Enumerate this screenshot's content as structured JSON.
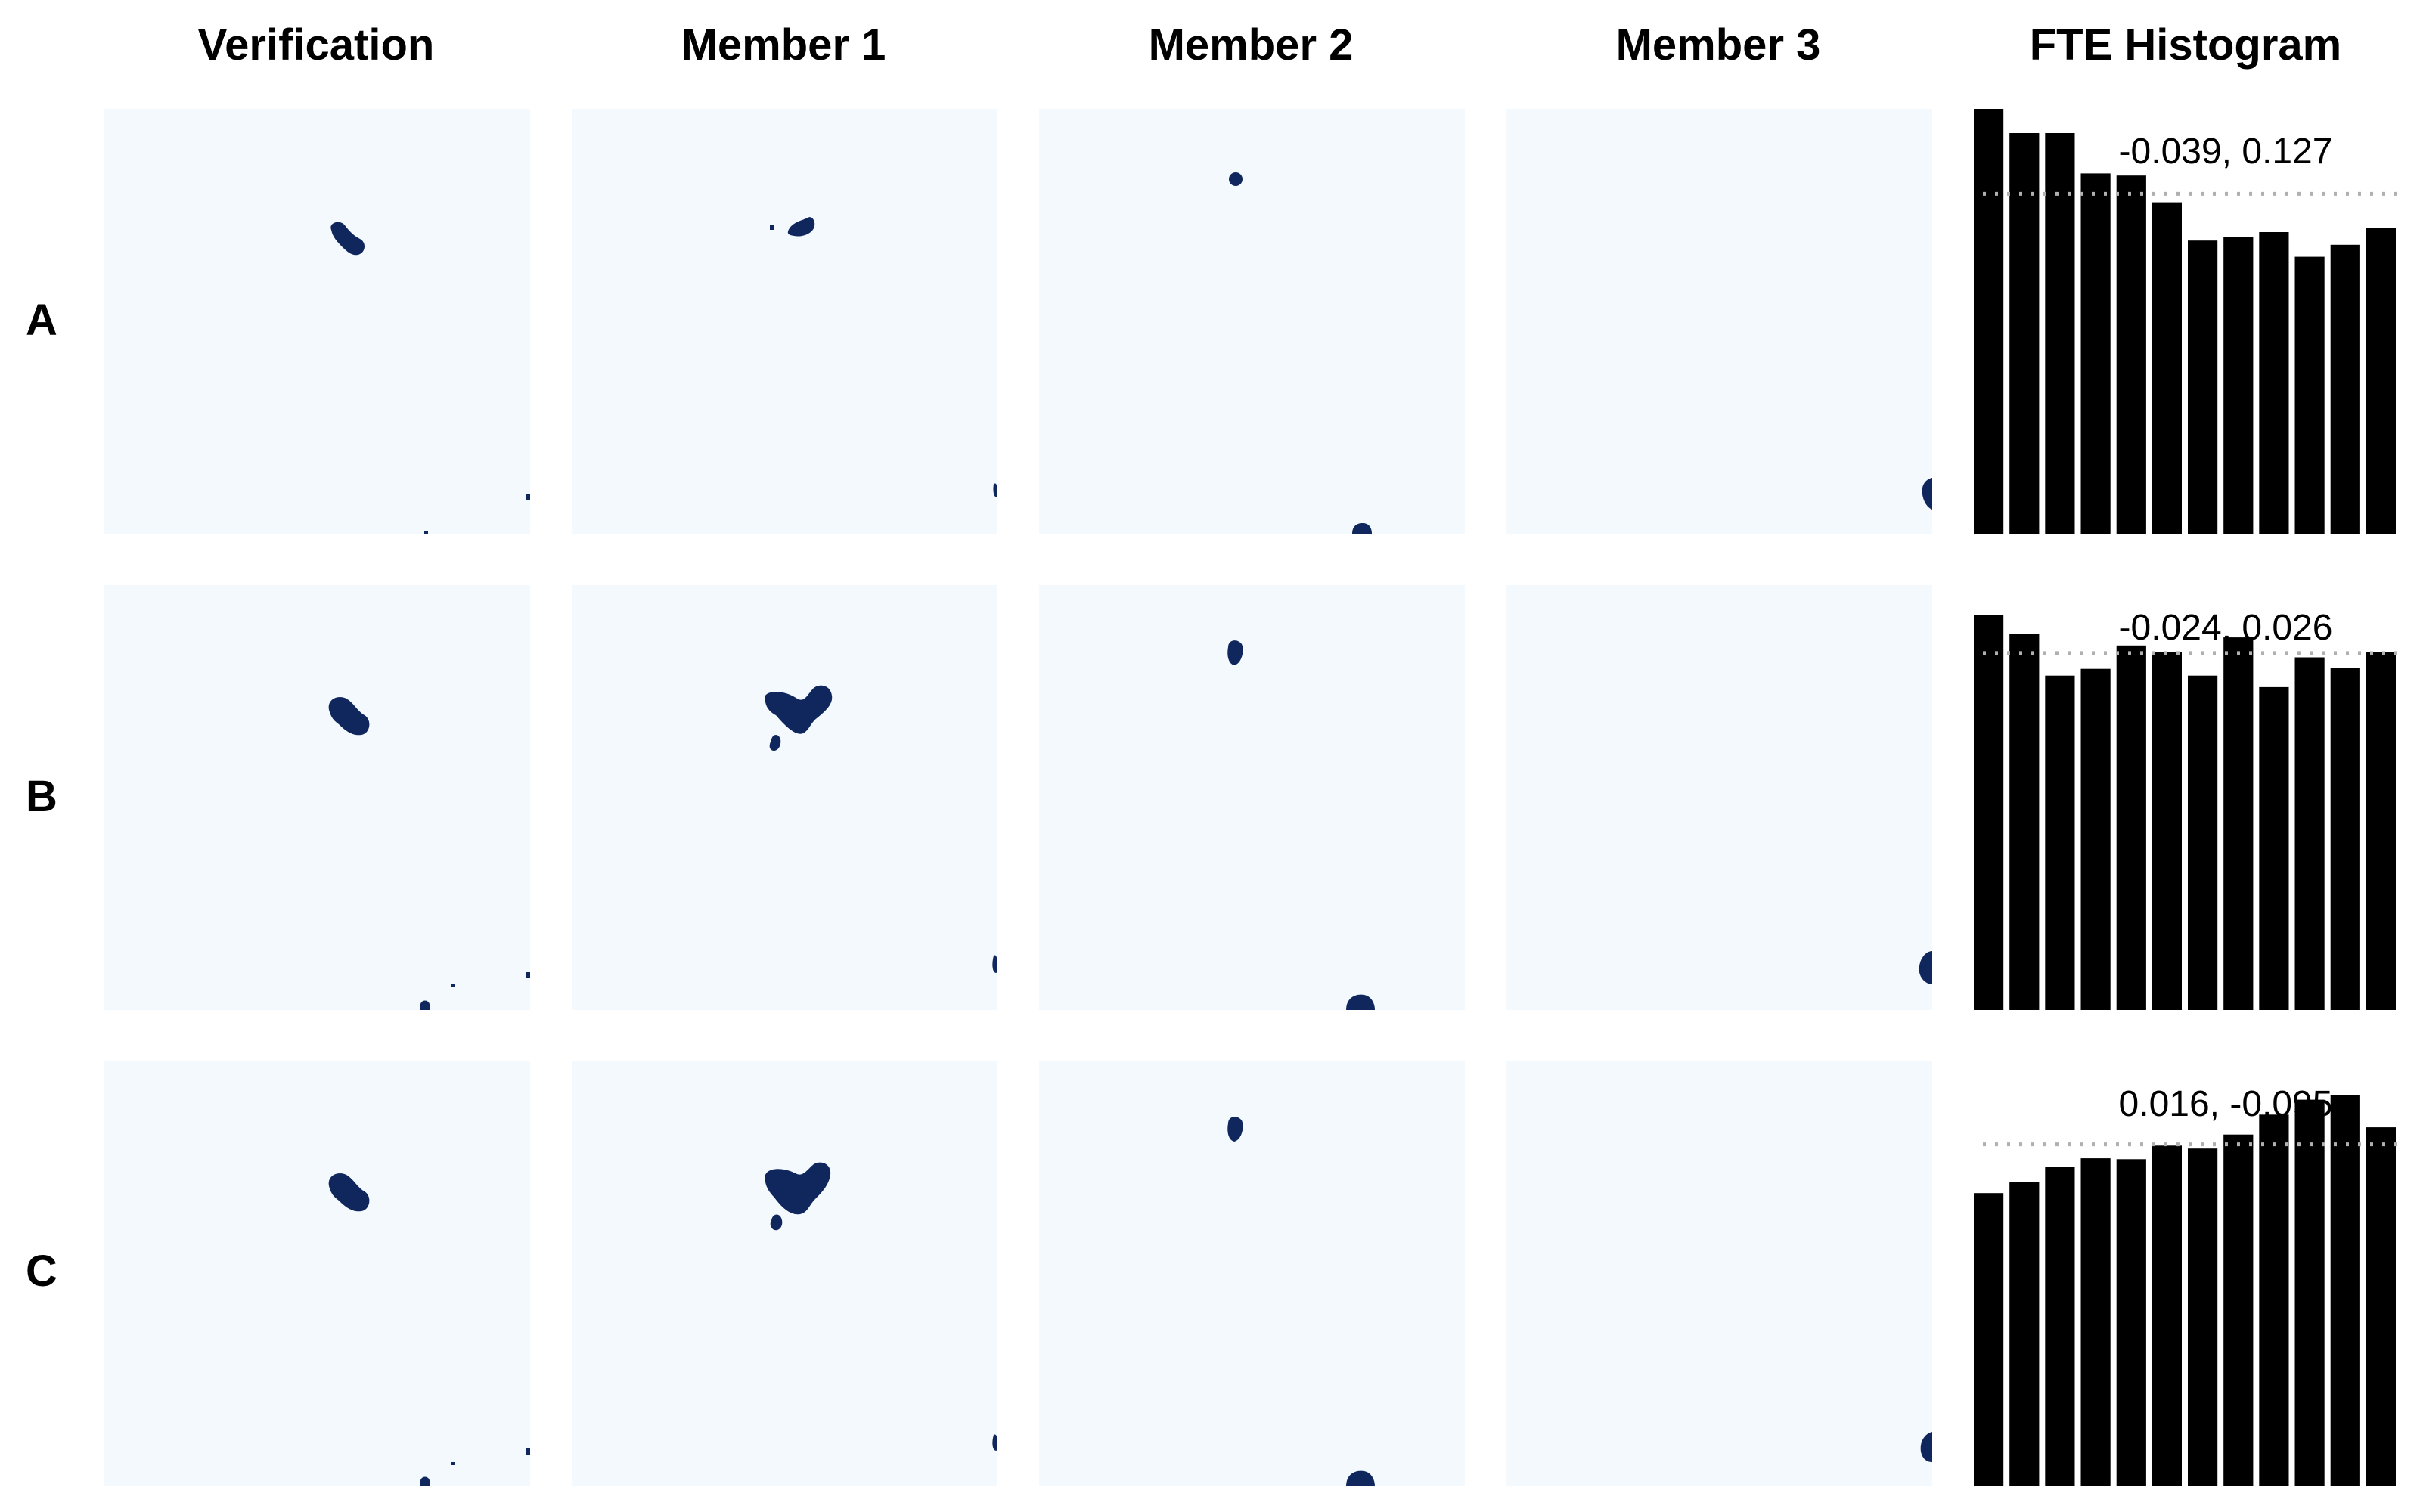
{
  "columns": [
    "Verification",
    "Member 1",
    "Member 2",
    "Member 3",
    "FTE Histogram"
  ],
  "rows": [
    "A",
    "B",
    "C"
  ],
  "colors": {
    "field_background": "#f4f9fe",
    "feature": "#10275e",
    "bar": "#000000",
    "reference_line": "#b0b0b0"
  },
  "chart_data": [
    {
      "type": "bar",
      "title": "FTE Histogram",
      "panel": "A",
      "annotation": "-0.039, 0.127",
      "values": [
        1.0,
        0.943,
        0.943,
        0.848,
        0.843,
        0.78,
        0.69,
        0.698,
        0.71,
        0.652,
        0.68,
        0.72
      ],
      "reference_level": 0.8,
      "ylim": [
        0,
        1.0
      ]
    },
    {
      "type": "bar",
      "title": "FTE Histogram",
      "panel": "B",
      "annotation": "-0.024, 0.026",
      "values": [
        0.93,
        0.885,
        0.787,
        0.803,
        0.858,
        0.842,
        0.787,
        0.877,
        0.76,
        0.83,
        0.805,
        0.843
      ],
      "reference_level": 0.84,
      "ylim": [
        0,
        1.0
      ]
    },
    {
      "type": "bar",
      "title": "FTE Histogram",
      "panel": "C",
      "annotation": "0.016, -0.095",
      "values": [
        0.69,
        0.716,
        0.752,
        0.772,
        0.77,
        0.802,
        0.795,
        0.828,
        0.875,
        0.91,
        0.92,
        0.845
      ],
      "reference_level": 0.805,
      "ylim": [
        0,
        1.0
      ]
    }
  ]
}
